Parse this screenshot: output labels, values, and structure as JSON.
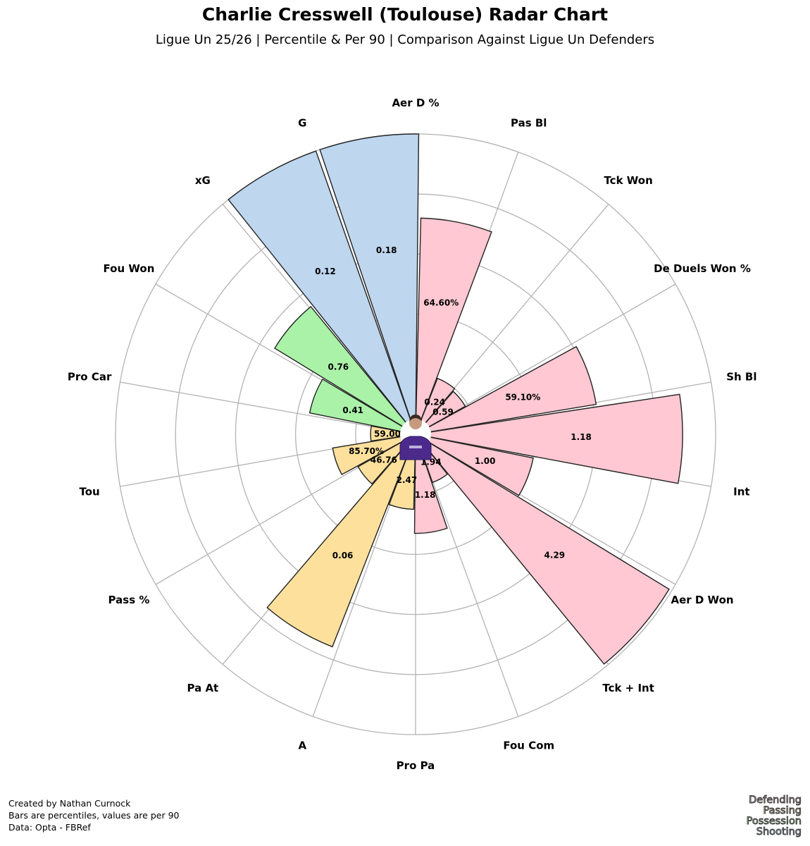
{
  "header": {
    "title": "Charlie Cresswell (Toulouse) Radar Chart",
    "subtitle": "Ligue Un 25/26 | Percentile & Per 90 | Comparison Against Ligue Un Defenders"
  },
  "chart_data": {
    "type": "polar-bar",
    "rmax": 100,
    "rings": [
      20,
      40,
      60,
      80,
      100
    ],
    "grid": true,
    "group_colors": {
      "Defending": "#ffc8d2",
      "Passing": "#fde09c",
      "Possession": "#aaf2a8",
      "Shooting": "#bed6ee"
    },
    "categories": [
      {
        "label": "Aer D %",
        "value_label": "64.60%",
        "percentile": 72,
        "group": "Defending"
      },
      {
        "label": "Pas Bl",
        "value_label": "0.24",
        "percentile": 20,
        "group": "Defending"
      },
      {
        "label": "Tck Won",
        "value_label": "0.59",
        "percentile": 19,
        "group": "Defending"
      },
      {
        "label": "De Duels Won %",
        "value_label": "59.10%",
        "percentile": 61,
        "group": "Defending"
      },
      {
        "label": "Sh Bl",
        "value_label": "1.18",
        "percentile": 89,
        "group": "Defending"
      },
      {
        "label": "Int",
        "value_label": "1.00",
        "percentile": 40,
        "group": "Defending"
      },
      {
        "label": "Aer D Won",
        "value_label": "4.29",
        "percentile": 99,
        "group": "Defending"
      },
      {
        "label": "Tck + Int",
        "value_label": "1.94",
        "percentile": 17,
        "group": "Defending"
      },
      {
        "label": "Fou Com",
        "value_label": "1.18",
        "percentile": 33,
        "group": "Defending"
      },
      {
        "label": "Pro Pa",
        "value_label": "2.47",
        "percentile": 25,
        "group": "Passing"
      },
      {
        "label": "A",
        "value_label": "0.06",
        "percentile": 76,
        "group": "Passing"
      },
      {
        "label": "Pa At",
        "value_label": "46.76",
        "percentile": 22,
        "group": "Passing"
      },
      {
        "label": "Pass %",
        "value_label": "85.70%",
        "percentile": 28,
        "group": "Passing"
      },
      {
        "label": "Tou",
        "value_label": "59.00",
        "percentile": 15,
        "group": "Passing"
      },
      {
        "label": "Pro Car",
        "value_label": "0.41",
        "percentile": 36,
        "group": "Possession"
      },
      {
        "label": "Fou Won",
        "value_label": "0.76",
        "percentile": 55,
        "group": "Possession"
      },
      {
        "label": "xG",
        "value_label": "0.12",
        "percentile": 100,
        "group": "Shooting"
      },
      {
        "label": "G",
        "value_label": "0.18",
        "percentile": 100,
        "group": "Shooting"
      }
    ]
  },
  "footer": {
    "created_by": "Created by Nathan Curnock",
    "note": "Bars are percentiles, values are per 90",
    "source": "Data: Opta - FBRef"
  },
  "legend": {
    "items": [
      {
        "label": "Defending",
        "color": "#d7a0a8"
      },
      {
        "label": "Passing",
        "color": "#e3c27a"
      },
      {
        "label": "Possession",
        "color": "#8fd48c"
      },
      {
        "label": "Shooting",
        "color": "#9fbcd8"
      }
    ]
  }
}
